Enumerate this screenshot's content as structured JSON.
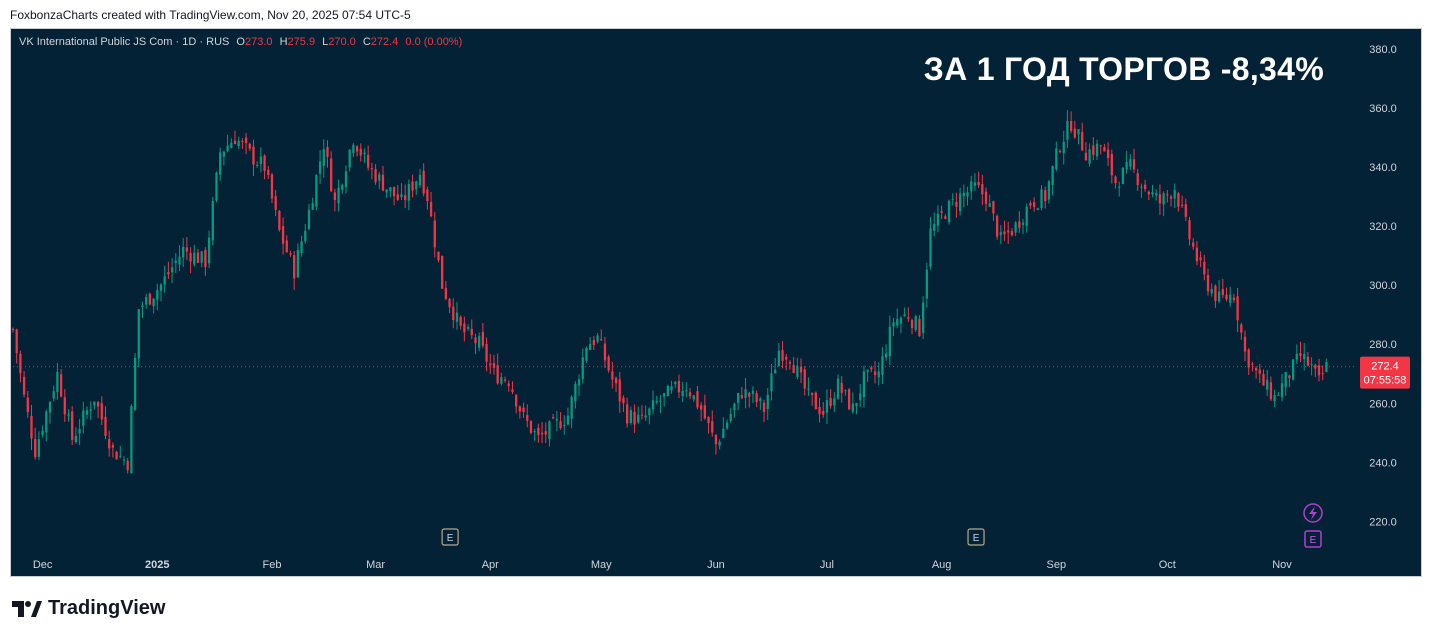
{
  "caption": "FoxbonzaCharts created with TradingView.com, Nov 20, 2025 07:54 UTC-5",
  "legend": {
    "symbol": "VK International Public JS Com",
    "interval": "1D",
    "exchange": "RUS",
    "open_label": "O",
    "open": "273.0",
    "high_label": "H",
    "high": "275.9",
    "low_label": "L",
    "low": "270.0",
    "close_label": "C",
    "close": "272.4",
    "change": "0.0 (0.00%)"
  },
  "headline": "ЗА 1 ГОД ТОРГОВ -8,34%",
  "price_tag": {
    "price": "272.4",
    "countdown": "07:55:58"
  },
  "event_markers": [
    {
      "label": "E",
      "month": "Mar",
      "pos": 0.65
    },
    {
      "label": "E",
      "month": "Aug",
      "pos": 0.3
    }
  ],
  "footer": {
    "brand": "TradingView"
  },
  "colors": {
    "background": "#042235",
    "up": "#089981",
    "down": "#f23645",
    "axis_text": "#d1d4dc",
    "price_line": "#f23645"
  },
  "icons": [
    "lightning-icon",
    "earnings-icon",
    "tradingview-logo-icon"
  ],
  "chart_data": {
    "type": "candlestick",
    "title": "",
    "ylim": [
      210,
      385
    ],
    "y_ticks": [
      220,
      240,
      260,
      280,
      300,
      320,
      340,
      360,
      380
    ],
    "x_ticks": [
      {
        "label": "Dec",
        "day": 8,
        "bold": false
      },
      {
        "label": "2025",
        "day": 39,
        "bold": true
      },
      {
        "label": "Feb",
        "day": 70,
        "bold": false
      },
      {
        "label": "Mar",
        "day": 98,
        "bold": false
      },
      {
        "label": "Apr",
        "day": 129,
        "bold": false
      },
      {
        "label": "May",
        "day": 159,
        "bold": false
      },
      {
        "label": "Jun",
        "day": 190,
        "bold": false
      },
      {
        "label": "Jul",
        "day": 220,
        "bold": false
      },
      {
        "label": "Aug",
        "day": 251,
        "bold": false
      },
      {
        "label": "Sep",
        "day": 282,
        "bold": false
      },
      {
        "label": "Oct",
        "day": 312,
        "bold": false
      },
      {
        "label": "Nov",
        "day": 343,
        "bold": false
      }
    ],
    "x_range_days": [
      0,
      363
    ],
    "last_day": 355,
    "last_price": 272.4,
    "anchors": [
      {
        "day": 0,
        "close": 285
      },
      {
        "day": 3,
        "close": 262
      },
      {
        "day": 6,
        "close": 244
      },
      {
        "day": 12,
        "close": 270
      },
      {
        "day": 16,
        "close": 248
      },
      {
        "day": 22,
        "close": 262
      },
      {
        "day": 27,
        "close": 244
      },
      {
        "day": 31,
        "close": 240
      },
      {
        "day": 34,
        "close": 292
      },
      {
        "day": 40,
        "close": 300
      },
      {
        "day": 46,
        "close": 312
      },
      {
        "day": 52,
        "close": 308
      },
      {
        "day": 56,
        "close": 345
      },
      {
        "day": 60,
        "close": 350
      },
      {
        "day": 65,
        "close": 343
      },
      {
        "day": 68,
        "close": 340
      },
      {
        "day": 72,
        "close": 318
      },
      {
        "day": 76,
        "close": 305
      },
      {
        "day": 80,
        "close": 325
      },
      {
        "day": 84,
        "close": 348
      },
      {
        "day": 87,
        "close": 328
      },
      {
        "day": 92,
        "close": 350
      },
      {
        "day": 96,
        "close": 340
      },
      {
        "day": 101,
        "close": 333
      },
      {
        "day": 105,
        "close": 328
      },
      {
        "day": 110,
        "close": 338
      },
      {
        "day": 112,
        "close": 330
      },
      {
        "day": 116,
        "close": 300
      },
      {
        "day": 121,
        "close": 285
      },
      {
        "day": 126,
        "close": 280
      },
      {
        "day": 130,
        "close": 270
      },
      {
        "day": 134,
        "close": 268
      },
      {
        "day": 138,
        "close": 255
      },
      {
        "day": 142,
        "close": 248
      },
      {
        "day": 146,
        "close": 252
      },
      {
        "day": 150,
        "close": 256
      },
      {
        "day": 155,
        "close": 280
      },
      {
        "day": 158,
        "close": 282
      },
      {
        "day": 162,
        "close": 268
      },
      {
        "day": 166,
        "close": 256
      },
      {
        "day": 170,
        "close": 254
      },
      {
        "day": 174,
        "close": 260
      },
      {
        "day": 178,
        "close": 264
      },
      {
        "day": 182,
        "close": 266
      },
      {
        "day": 186,
        "close": 258
      },
      {
        "day": 190,
        "close": 246
      },
      {
        "day": 193,
        "close": 254
      },
      {
        "day": 197,
        "close": 264
      },
      {
        "day": 200,
        "close": 262
      },
      {
        "day": 203,
        "close": 258
      },
      {
        "day": 207,
        "close": 278
      },
      {
        "day": 210,
        "close": 276
      },
      {
        "day": 215,
        "close": 262
      },
      {
        "day": 219,
        "close": 257
      },
      {
        "day": 223,
        "close": 266
      },
      {
        "day": 227,
        "close": 258
      },
      {
        "day": 230,
        "close": 268
      },
      {
        "day": 234,
        "close": 270
      },
      {
        "day": 238,
        "close": 288
      },
      {
        "day": 242,
        "close": 290
      },
      {
        "day": 245,
        "close": 285
      },
      {
        "day": 248,
        "close": 318
      },
      {
        "day": 252,
        "close": 325
      },
      {
        "day": 256,
        "close": 330
      },
      {
        "day": 260,
        "close": 333
      },
      {
        "day": 263,
        "close": 330
      },
      {
        "day": 267,
        "close": 315
      },
      {
        "day": 271,
        "close": 320
      },
      {
        "day": 275,
        "close": 328
      },
      {
        "day": 279,
        "close": 330
      },
      {
        "day": 283,
        "close": 348
      },
      {
        "day": 286,
        "close": 355
      },
      {
        "day": 290,
        "close": 345
      },
      {
        "day": 294,
        "close": 347
      },
      {
        "day": 298,
        "close": 335
      },
      {
        "day": 302,
        "close": 340
      },
      {
        "day": 306,
        "close": 333
      },
      {
        "day": 310,
        "close": 328
      },
      {
        "day": 314,
        "close": 333
      },
      {
        "day": 318,
        "close": 316
      },
      {
        "day": 322,
        "close": 302
      },
      {
        "day": 326,
        "close": 295
      },
      {
        "day": 330,
        "close": 297
      },
      {
        "day": 333,
        "close": 277
      },
      {
        "day": 337,
        "close": 268
      },
      {
        "day": 341,
        "close": 262
      },
      {
        "day": 345,
        "close": 270
      },
      {
        "day": 348,
        "close": 276
      },
      {
        "day": 351,
        "close": 272
      },
      {
        "day": 353,
        "close": 267
      },
      {
        "day": 355,
        "close": 272.4
      }
    ]
  }
}
